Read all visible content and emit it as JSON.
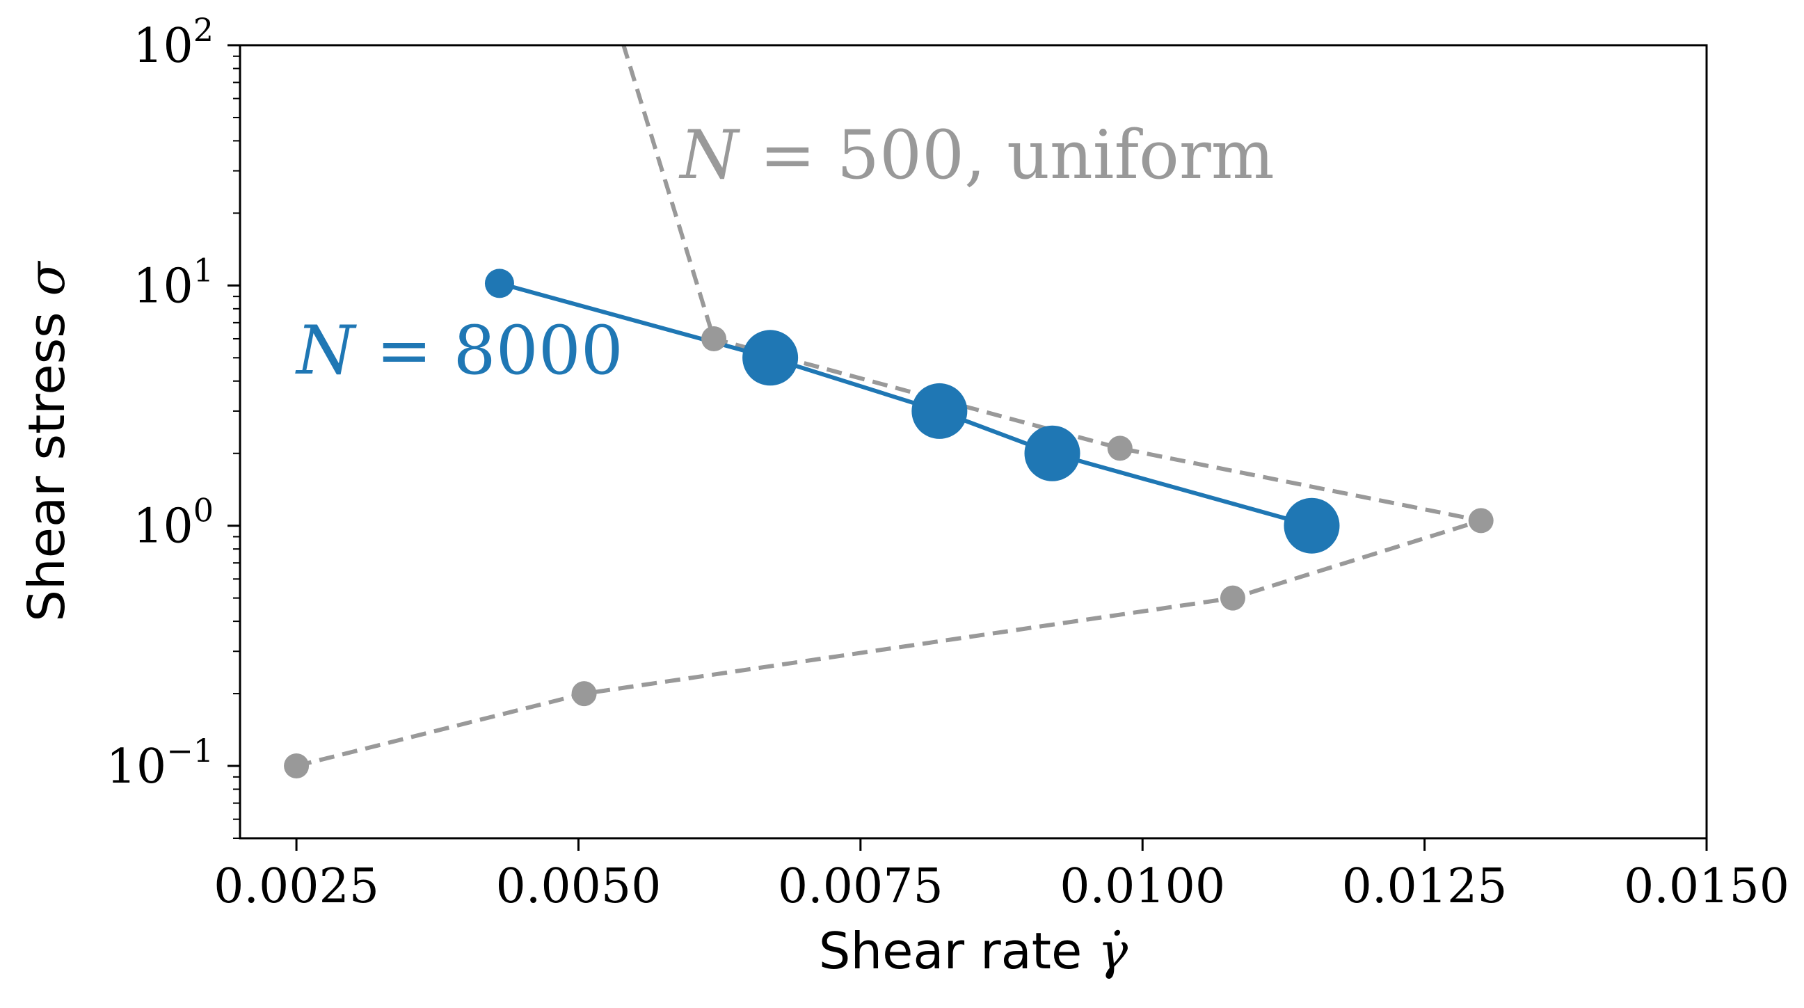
{
  "chart_data": {
    "type": "line",
    "xlabel_text": "Shear rate ",
    "xlabel_symbol": "γ̇",
    "ylabel_text": "Shear stress ",
    "ylabel_symbol": "σ",
    "xlim": [
      0.002,
      0.015
    ],
    "ylim": [
      0.05,
      100
    ],
    "yscale": "log",
    "x_ticks": [
      0.0025,
      0.005,
      0.0075,
      0.01,
      0.0125,
      0.015
    ],
    "x_tick_labels": [
      "0.0025",
      "0.0050",
      "0.0075",
      "0.0100",
      "0.0125",
      "0.0150"
    ],
    "y_ticks": [
      {
        "value": 0.1,
        "base": "10",
        "exp": "−1"
      },
      {
        "value": 1,
        "base": "10",
        "exp": "0"
      },
      {
        "value": 10,
        "base": "10",
        "exp": "1"
      },
      {
        "value": 100,
        "base": "10",
        "exp": "2"
      }
    ],
    "grid": false,
    "series": [
      {
        "name": "N = 500, uniform",
        "color": "#999999",
        "style": "dashed",
        "x": [
          0.0025,
          0.00505,
          0.0108,
          0.013,
          0.0098,
          0.0062,
          0.0054
        ],
        "y": [
          0.1,
          0.2,
          0.5,
          1.05,
          2.1,
          6.0,
          100
        ],
        "markers": [
          true,
          true,
          true,
          true,
          true,
          true,
          false
        ],
        "marker_size": [
          1,
          1,
          1,
          1,
          1,
          1,
          0
        ]
      },
      {
        "name": "N = 8000",
        "color": "#1f77b4",
        "style": "solid",
        "x": [
          0.0043,
          0.0067,
          0.0082,
          0.0092,
          0.0115
        ],
        "y": [
          10.2,
          5.0,
          3.0,
          2.0,
          1.0
        ],
        "markers": [
          true,
          true,
          true,
          true,
          true
        ],
        "marker_size": [
          1,
          2,
          2,
          2,
          2
        ]
      }
    ],
    "annotations": [
      {
        "name": "annotation-n500",
        "italic": "N",
        "rest": " = 500, uniform",
        "color": "#999999",
        "x": 0.0059,
        "y": 28
      },
      {
        "name": "annotation-n8000",
        "italic": "N",
        "rest": " = 8000",
        "color": "#1f77b4",
        "x": 0.0025,
        "y": 4.3
      }
    ]
  }
}
